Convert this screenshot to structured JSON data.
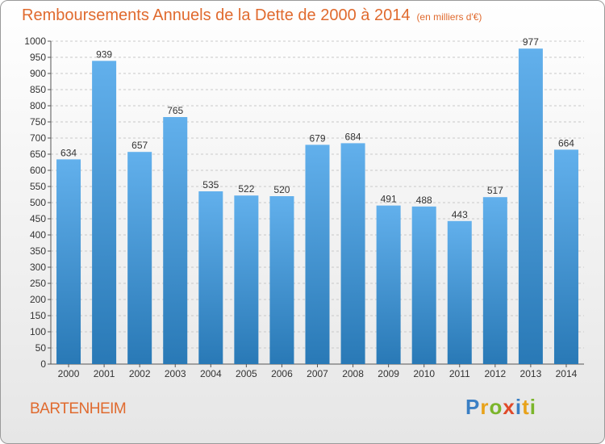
{
  "title": "Remboursements Annuels de la Dette de 2000 à 2014",
  "unit": "(en milliers d'€)",
  "town": "BARTENHEIM",
  "logo": {
    "letters": [
      "P",
      "r",
      "o",
      "x",
      "i",
      "t",
      "i"
    ],
    "colors": [
      "#3a7fc4",
      "#e8a21a",
      "#7bb52b",
      "#e04a2a",
      "#3a7fc4",
      "#e8a21a",
      "#7bb52b"
    ]
  },
  "colors": {
    "bar_top": "#62b0ec",
    "bar_bottom": "#2979b6",
    "title": "#e06a2e",
    "axis": "#555555",
    "grid": "#c9c9c9"
  },
  "chart_data": {
    "type": "bar",
    "categories": [
      "2000",
      "2001",
      "2002",
      "2003",
      "2004",
      "2005",
      "2006",
      "2007",
      "2008",
      "2009",
      "2010",
      "2011",
      "2012",
      "2013",
      "2014"
    ],
    "values": [
      634,
      939,
      657,
      765,
      535,
      522,
      520,
      679,
      684,
      491,
      488,
      443,
      517,
      977,
      664
    ],
    "yticks": [
      "0",
      "50",
      "100",
      "150",
      "200",
      "250",
      "300",
      "350",
      "400",
      "450",
      "500",
      "550",
      "600",
      "650",
      "700",
      "750",
      "800",
      "850",
      "900",
      "950",
      "1000"
    ],
    "ylim": [
      0,
      1000
    ],
    "grid": true
  }
}
